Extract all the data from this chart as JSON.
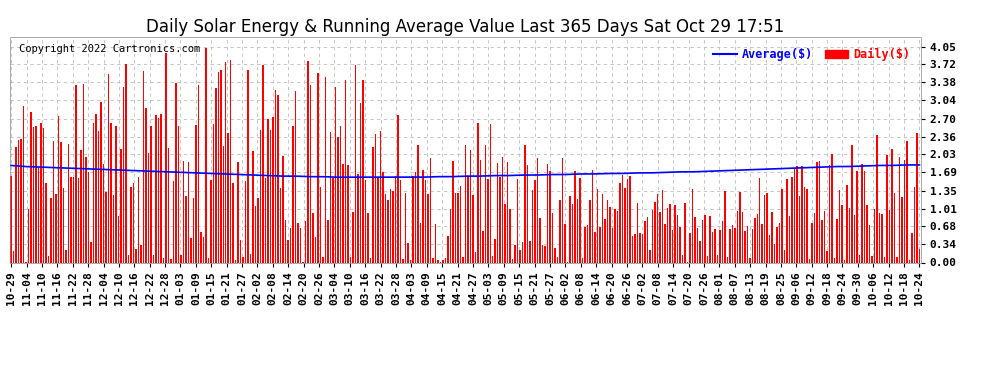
{
  "title": "Daily Solar Energy & Running Average Value Last 365 Days Sat Oct 29 17:51",
  "copyright": "Copyright 2022 Cartronics.com",
  "legend_avg": "Average($)",
  "legend_daily": "Daily($)",
  "bar_color": "#ff0000",
  "avg_line_color": "#0000ff",
  "background_color": "#ffffff",
  "plot_bg_color": "#ffffff",
  "grid_color": "#bbbbbb",
  "ylim": [
    0.0,
    4.22
  ],
  "yticks": [
    0.0,
    0.34,
    0.68,
    1.01,
    1.35,
    1.69,
    2.03,
    2.36,
    2.7,
    3.04,
    3.38,
    3.72,
    4.05
  ],
  "x_labels": [
    "10-29",
    "11-04",
    "11-10",
    "11-16",
    "11-22",
    "11-28",
    "12-04",
    "12-10",
    "12-16",
    "12-22",
    "12-28",
    "01-03",
    "01-09",
    "01-15",
    "01-21",
    "01-27",
    "02-02",
    "02-08",
    "02-14",
    "02-20",
    "02-26",
    "03-04",
    "03-10",
    "03-16",
    "03-22",
    "03-28",
    "04-03",
    "04-09",
    "04-15",
    "04-21",
    "04-27",
    "05-03",
    "05-09",
    "05-15",
    "05-21",
    "05-27",
    "06-02",
    "06-08",
    "06-14",
    "06-20",
    "06-26",
    "07-02",
    "07-08",
    "07-14",
    "07-20",
    "07-26",
    "08-01",
    "08-07",
    "08-13",
    "08-19",
    "08-25",
    "09-06",
    "09-12",
    "09-18",
    "09-24",
    "09-30",
    "10-06",
    "10-12",
    "10-18",
    "10-24"
  ],
  "avg_values": [
    1.82,
    1.8,
    1.79,
    1.78,
    1.77,
    1.76,
    1.75,
    1.74,
    1.73,
    1.72,
    1.71,
    1.7,
    1.69,
    1.68,
    1.67,
    1.66,
    1.65,
    1.64,
    1.63,
    1.62,
    1.62,
    1.61,
    1.61,
    1.6,
    1.6,
    1.6,
    1.6,
    1.6,
    1.6,
    1.6,
    1.61,
    1.61,
    1.62,
    1.62,
    1.63,
    1.63,
    1.64,
    1.64,
    1.65,
    1.65,
    1.66,
    1.66,
    1.67,
    1.67,
    1.68,
    1.68,
    1.69,
    1.7,
    1.7,
    1.71,
    1.72,
    1.73,
    1.74,
    1.75,
    1.76,
    1.77,
    1.78,
    1.79,
    1.8,
    1.8,
    1.81,
    1.82,
    1.82,
    1.83,
    1.83
  ],
  "title_fontsize": 12,
  "tick_fontsize": 8,
  "copyright_fontsize": 7.5,
  "legend_fontsize": 8.5
}
